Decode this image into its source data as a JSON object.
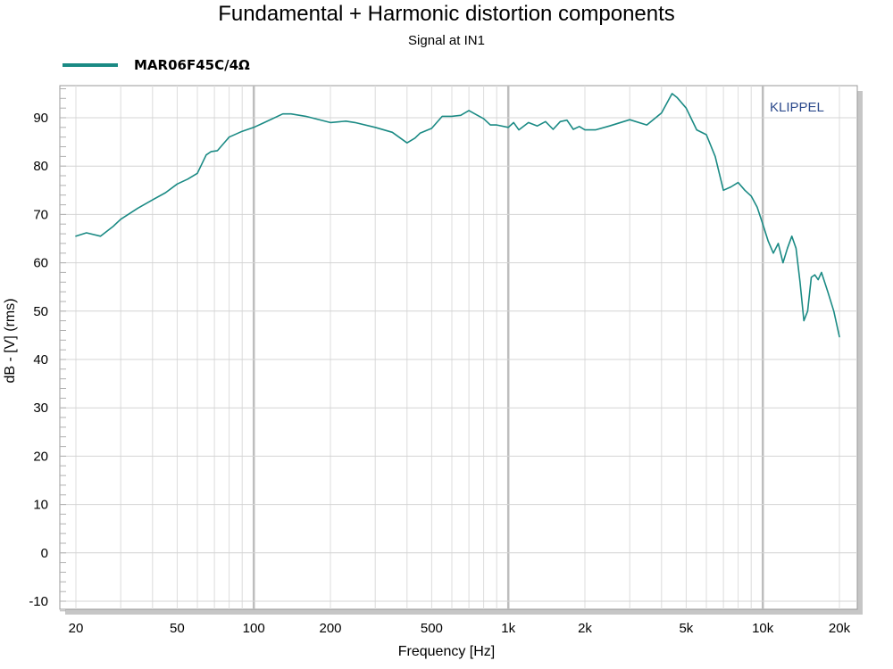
{
  "chart_data": {
    "type": "line",
    "title": "Fundamental + Harmonic distortion components",
    "subtitle": "Signal at IN1",
    "xlabel": "Frequency [Hz]",
    "ylabel": "dB - [V]  (rms)",
    "xscale": "log",
    "xlim": [
      20,
      20000
    ],
    "ylim": [
      -12,
      98
    ],
    "x_ticks": [
      20,
      50,
      100,
      200,
      500,
      1000,
      2000,
      5000,
      10000,
      20000
    ],
    "x_tick_labels": [
      "20",
      "50",
      "100",
      "200",
      "500",
      "1k",
      "2k",
      "5k",
      "10k",
      "20k"
    ],
    "y_ticks": [
      -10,
      0,
      10,
      20,
      30,
      40,
      50,
      60,
      70,
      80,
      90
    ],
    "y_tick_labels": [
      "-10",
      "0",
      "10",
      "20",
      "30",
      "40",
      "50",
      "60",
      "70",
      "80",
      "90"
    ],
    "grid": true,
    "legend_position": "top-left",
    "watermark": "KLIPPEL",
    "series": [
      {
        "name": "MAR06F45C/4Ω",
        "color": "#1a8a84",
        "x": [
          20,
          22,
          25,
          28,
          30,
          35,
          40,
          45,
          50,
          55,
          60,
          65,
          68,
          72,
          80,
          90,
          100,
          110,
          130,
          140,
          160,
          200,
          230,
          250,
          300,
          350,
          400,
          430,
          450,
          500,
          550,
          600,
          650,
          700,
          750,
          800,
          850,
          900,
          1000,
          1050,
          1100,
          1200,
          1300,
          1400,
          1500,
          1600,
          1700,
          1800,
          1900,
          2000,
          2200,
          2500,
          3000,
          3500,
          4000,
          4400,
          4600,
          5000,
          5500,
          6000,
          6500,
          7000,
          7500,
          8000,
          8500,
          9000,
          9500,
          10000,
          10500,
          11000,
          11500,
          12000,
          12500,
          13000,
          13500,
          14000,
          14500,
          15000,
          15500,
          16000,
          16500,
          17000,
          18000,
          19000,
          20000
        ],
        "y": [
          65.5,
          66.2,
          65.5,
          67.5,
          69.0,
          71.3,
          73.0,
          74.5,
          76.3,
          77.3,
          78.5,
          82.3,
          83.0,
          83.2,
          86.0,
          87.2,
          88.0,
          89.0,
          90.8,
          90.8,
          90.3,
          89.0,
          89.3,
          89.0,
          88.0,
          87.0,
          84.8,
          85.8,
          86.8,
          87.8,
          90.3,
          90.3,
          90.5,
          91.5,
          90.6,
          89.8,
          88.5,
          88.5,
          88.0,
          89.0,
          87.5,
          89.0,
          88.3,
          89.2,
          87.6,
          89.2,
          89.5,
          87.6,
          88.2,
          87.5,
          87.5,
          88.3,
          89.6,
          88.5,
          91.0,
          95.0,
          94.2,
          92.0,
          87.5,
          86.5,
          82.0,
          75.0,
          75.7,
          76.6,
          75.0,
          73.8,
          71.5,
          68.0,
          64.5,
          62.0,
          64.0,
          60.0,
          63.0,
          65.5,
          63.0,
          56.0,
          48.0,
          50.0,
          57.0,
          57.5,
          56.5,
          58.0,
          54.0,
          50.0,
          44.7
        ]
      }
    ]
  }
}
